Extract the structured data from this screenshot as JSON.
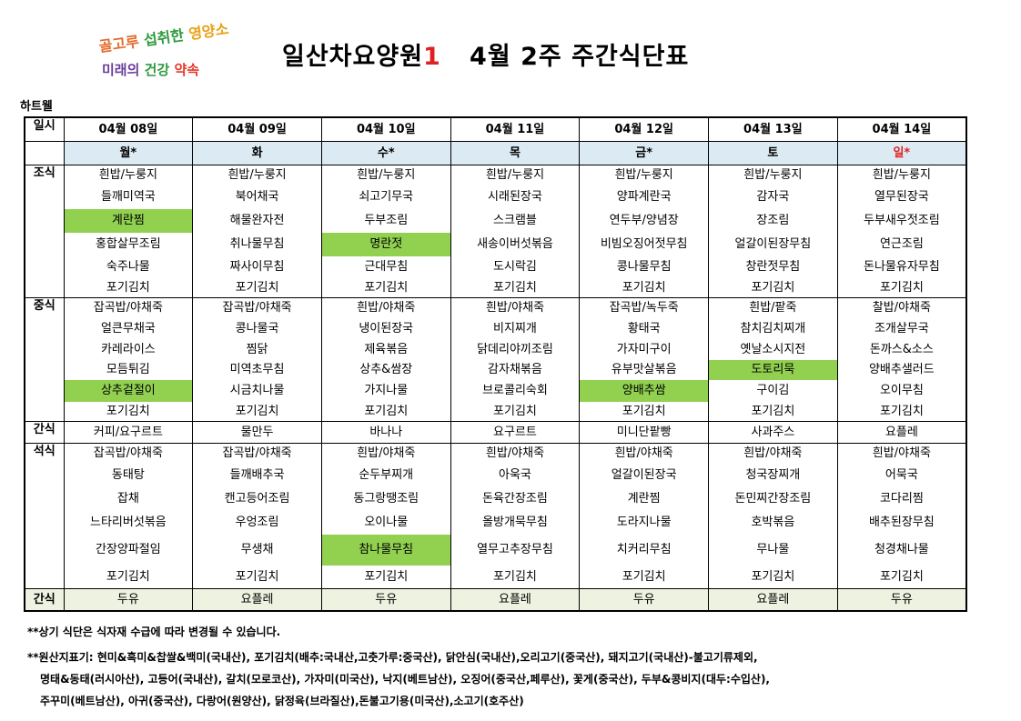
{
  "logo": {
    "line1": [
      "골고루",
      "섭취한",
      "영양소"
    ],
    "line2": [
      "미래의",
      "건강",
      "약속"
    ]
  },
  "title": {
    "prefix": "일산차요양원",
    "number": "1",
    "suffix": "   4월 2주 주간식단표"
  },
  "subtitle": "하트웰",
  "table": {
    "header_label": "일시",
    "dates": [
      "04월 08일",
      "04월 09일",
      "04월 10일",
      "04월 11일",
      "04월 12일",
      "04월 13일",
      "04월 14일"
    ],
    "days": [
      "월*",
      "화",
      "수*",
      "목",
      "금*",
      "토",
      "일*"
    ],
    "sections": {
      "breakfast": {
        "label": "조식",
        "rows": [
          [
            "흰밥/누룽지",
            "흰밥/누룽지",
            "흰밥/누룽지",
            "흰밥/누룽지",
            "흰밥/누룽지",
            "흰밥/누룽지",
            "흰밥/누룽지"
          ],
          [
            "들깨미역국",
            "북어채국",
            "쇠고기무국",
            "시래된장국",
            "양파계란국",
            "감자국",
            "열무된장국"
          ],
          [
            "계란찜",
            "해물완자전",
            "두부조림",
            "스크램블",
            "연두부/양념장",
            "장조림",
            "두부새우젓조림"
          ],
          [
            "홍합살무조림",
            "취나물무침",
            "명란젓",
            "새송이버섯볶음",
            "비빔오징어젓무침",
            "얼갈이된장무침",
            "연근조림"
          ],
          [
            "숙주나물",
            "짜사이무침",
            "근대무침",
            "도시락김",
            "콩나물무침",
            "창란젓무침",
            "돈나물유자무침"
          ],
          [
            "포기김치",
            "포기김치",
            "포기김치",
            "포기김치",
            "포기김치",
            "포기김치",
            "포기김치"
          ]
        ]
      },
      "lunch": {
        "label": "중식",
        "rows": [
          [
            "잡곡밥/야채죽",
            "잡곡밥/야채죽",
            "흰밥/야채죽",
            "흰밥/야채죽",
            "잡곡밥/녹두죽",
            "흰밥/팥죽",
            "찰밥/야채죽"
          ],
          [
            "얼큰무채국",
            "콩나물국",
            "냉이된장국",
            "비지찌개",
            "황태국",
            "참치김치찌개",
            "조개살무국"
          ],
          [
            "카레라이스",
            "찜닭",
            "제육볶음",
            "닭데리야끼조림",
            "가자미구이",
            "옛날소시지전",
            "돈까스&소스"
          ],
          [
            "모듬튀김",
            "미역초무침",
            "상추&쌈장",
            "감자채볶음",
            "유부맛살볶음",
            "도토리묵",
            "양배추샐러드"
          ],
          [
            "상추겉절이",
            "시금치나물",
            "가지나물",
            "브로콜리숙회",
            "양배추쌈",
            "구이김",
            "오이무침"
          ],
          [
            "포기김치",
            "포기김치",
            "포기김치",
            "포기김치",
            "포기김치",
            "포기김치",
            "포기김치"
          ]
        ]
      },
      "snack1": {
        "label": "간식",
        "rows": [
          [
            "커피/요구르트",
            "물만두",
            "바나나",
            "요구르트",
            "미니단팥빵",
            "사과주스",
            "요플레"
          ]
        ]
      },
      "dinner": {
        "label": "석식",
        "rows": [
          [
            "잡곡밥/야채죽",
            "잡곡밥/야채죽",
            "흰밥/야채죽",
            "흰밥/야채죽",
            "흰밥/야채죽",
            "흰밥/야채죽",
            "흰밥/야채죽"
          ],
          [
            "동태탕",
            "들깨배추국",
            "순두부찌개",
            "아욱국",
            "얼갈이된장국",
            "청국장찌개",
            "어묵국"
          ],
          [
            "잡채",
            "캔고등어조림",
            "동그랑땡조림",
            "돈육간장조림",
            "계란찜",
            "돈민찌간장조림",
            "코다리찜"
          ],
          [
            "느타리버섯볶음",
            "우엉조림",
            "오이나물",
            "올방개묵무침",
            "도라지나물",
            "호박볶음",
            "배추된장무침"
          ],
          [
            "간장양파절임",
            "무생채",
            "참나물무침",
            "열무고추장무침",
            "치커리무침",
            "무나물",
            "청경채나물"
          ],
          [
            "포기김치",
            "포기김치",
            "포기김치",
            "포기김치",
            "포기김치",
            "포기김치",
            "포기김치"
          ]
        ]
      },
      "snack2": {
        "label": "간식",
        "rows": [
          [
            "두유",
            "요플레",
            "두유",
            "요플레",
            "두유",
            "요플레",
            "두유"
          ]
        ]
      }
    },
    "highlight_color": "#92d050",
    "day_row_color": "#dcebf3"
  },
  "notes": {
    "line1": "**상기 식단은 식자재 수급에 따라 변경될 수 있습니다.",
    "line2": "**원산지표기: 현미&흑미&찹쌀&백미(국내산), 포기김치(배추:국내산,고춧가루:중국산), 닭안심(국내산),오리고기(중국산), 돼지고기(국내산)-불고기류제외,",
    "line3": "명태&동태(러시아산), 고등어(국내산), 갈치(모로코산), 가자미(미국산), 낙지(베트남산), 오징어(중국산,페루산), 꽃게(중국산), 두부&콩비지(대두:수입산),",
    "line4": "주꾸미(베트남산), 아귀(중국산), 다랑어(원양산), 닭정육(브라질산),돈불고기용(미국산),소고기(호주산)"
  }
}
